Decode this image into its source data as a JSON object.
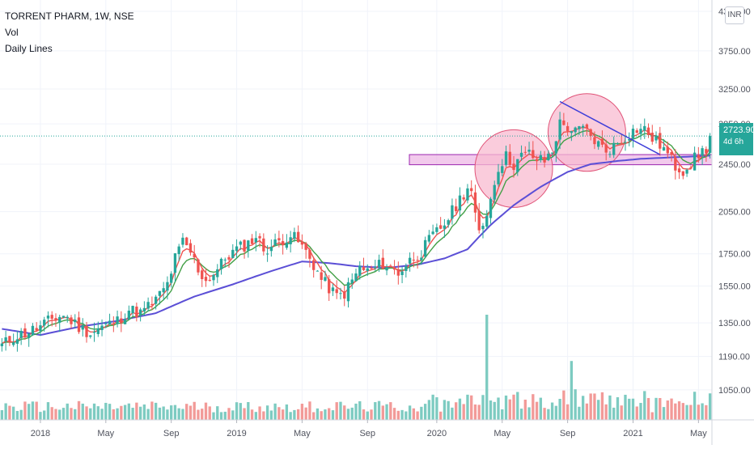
{
  "legend": {
    "symbol": "TORRENT PHARM, 1W, NSE",
    "vol_label": "Vol",
    "daily_lines_label": "Daily Lines"
  },
  "currency_badge": "INR",
  "last_price": {
    "value": "2723.90",
    "countdown": "4d 6h",
    "color": "#26a69a"
  },
  "colors": {
    "up": "#26a69a",
    "down": "#ef5350",
    "vol_up": "#7dcbc1",
    "vol_down": "#f29a98",
    "ma_fast": "#ef5350",
    "ma_mid": "#43a047",
    "ma_slow": "#5b4fd6",
    "zone_fill": "#e9a6e0",
    "zone_stroke": "#9c27b0",
    "circle_fill": "#f8bbd0",
    "circle_stroke": "#e05377",
    "trendline": "#3f3fd9"
  },
  "chart_data": {
    "type": "candlestick",
    "title": "TORRENT PHARM, 1W, NSE",
    "y_scale": "log",
    "ylim": [
      935,
      4350
    ],
    "price_axis_ticks": [
      "4350.00",
      "3750.00",
      "3250.00",
      "2850.00",
      "2450.00",
      "2050.00",
      "1750.00",
      "1550.00",
      "1350.00",
      "1190.00",
      "1050.00"
    ],
    "time_axis_ticks": [
      {
        "label": "2018",
        "week": 10
      },
      {
        "label": "May",
        "week": 27
      },
      {
        "label": "Sep",
        "week": 44
      },
      {
        "label": "2019",
        "week": 61
      },
      {
        "label": "May",
        "week": 78
      },
      {
        "label": "Sep",
        "week": 95
      },
      {
        "label": "2020",
        "week": 113
      },
      {
        "label": "May",
        "week": 130
      },
      {
        "label": "Sep",
        "week": 147
      },
      {
        "label": "2021",
        "week": 164
      },
      {
        "label": "May",
        "week": 181
      }
    ],
    "weeks_total": 185,
    "close_anchors": [
      [
        0,
        1240
      ],
      [
        3,
        1280
      ],
      [
        6,
        1300
      ],
      [
        10,
        1330
      ],
      [
        13,
        1370
      ],
      [
        16,
        1390
      ],
      [
        20,
        1330
      ],
      [
        23,
        1300
      ],
      [
        26,
        1330
      ],
      [
        30,
        1360
      ],
      [
        33,
        1420
      ],
      [
        36,
        1400
      ],
      [
        40,
        1470
      ],
      [
        43,
        1560
      ],
      [
        45,
        1720
      ],
      [
        47,
        1830
      ],
      [
        49,
        1760
      ],
      [
        51,
        1650
      ],
      [
        53,
        1580
      ],
      [
        56,
        1650
      ],
      [
        58,
        1720
      ],
      [
        61,
        1780
      ],
      [
        64,
        1820
      ],
      [
        66,
        1870
      ],
      [
        68,
        1780
      ],
      [
        70,
        1800
      ],
      [
        73,
        1850
      ],
      [
        75,
        1880
      ],
      [
        77,
        1830
      ],
      [
        79,
        1760
      ],
      [
        81,
        1680
      ],
      [
        83,
        1590
      ],
      [
        85,
        1540
      ],
      [
        87,
        1490
      ],
      [
        89,
        1510
      ],
      [
        91,
        1580
      ],
      [
        93,
        1660
      ],
      [
        95,
        1640
      ],
      [
        97,
        1660
      ],
      [
        99,
        1690
      ],
      [
        101,
        1660
      ],
      [
        103,
        1630
      ],
      [
        105,
        1680
      ],
      [
        107,
        1730
      ],
      [
        109,
        1760
      ],
      [
        111,
        1840
      ],
      [
        113,
        1900
      ],
      [
        115,
        1960
      ],
      [
        117,
        2050
      ],
      [
        119,
        2150
      ],
      [
        121,
        2250
      ],
      [
        122,
        2200
      ],
      [
        123,
        2000
      ],
      [
        124,
        1890
      ],
      [
        125,
        1960
      ],
      [
        127,
        2150
      ],
      [
        129,
        2430
      ],
      [
        131,
        2520
      ],
      [
        133,
        2450
      ],
      [
        135,
        2520
      ],
      [
        137,
        2550
      ],
      [
        139,
        2490
      ],
      [
        141,
        2480
      ],
      [
        143,
        2580
      ],
      [
        145,
        2850
      ],
      [
        147,
        2820
      ],
      [
        149,
        2760
      ],
      [
        151,
        2800
      ],
      [
        153,
        2720
      ],
      [
        155,
        2640
      ],
      [
        157,
        2580
      ],
      [
        159,
        2620
      ],
      [
        161,
        2680
      ],
      [
        163,
        2750
      ],
      [
        165,
        2800
      ],
      [
        167,
        2790
      ],
      [
        169,
        2700
      ],
      [
        171,
        2640
      ],
      [
        173,
        2540
      ],
      [
        175,
        2430
      ],
      [
        177,
        2400
      ],
      [
        179,
        2460
      ],
      [
        181,
        2540
      ],
      [
        183,
        2600
      ],
      [
        184,
        2723.9
      ]
    ],
    "ma_slow_anchors": [
      [
        0,
        1320
      ],
      [
        10,
        1290
      ],
      [
        20,
        1330
      ],
      [
        30,
        1360
      ],
      [
        40,
        1400
      ],
      [
        50,
        1490
      ],
      [
        60,
        1560
      ],
      [
        70,
        1640
      ],
      [
        78,
        1700
      ],
      [
        85,
        1690
      ],
      [
        92,
        1670
      ],
      [
        100,
        1660
      ],
      [
        108,
        1680
      ],
      [
        115,
        1720
      ],
      [
        121,
        1780
      ],
      [
        127,
        1950
      ],
      [
        133,
        2100
      ],
      [
        140,
        2250
      ],
      [
        147,
        2380
      ],
      [
        153,
        2450
      ],
      [
        160,
        2480
      ],
      [
        166,
        2500
      ],
      [
        172,
        2510
      ],
      [
        178,
        2520
      ],
      [
        184,
        2530
      ]
    ],
    "volume_spikes": [
      [
        126,
        5.0
      ],
      [
        148,
        2.8
      ],
      [
        133,
        1.2
      ],
      [
        145,
        1.0
      ]
    ],
    "support_zone": {
      "low": 2445,
      "high": 2540
    },
    "trendline": [
      {
        "week": 145,
        "price": 3100
      },
      {
        "week": 171,
        "price": 2540
      }
    ],
    "highlight_circles": [
      {
        "week": 133,
        "price": 2410
      },
      {
        "week": 152,
        "price": 2760
      }
    ]
  }
}
